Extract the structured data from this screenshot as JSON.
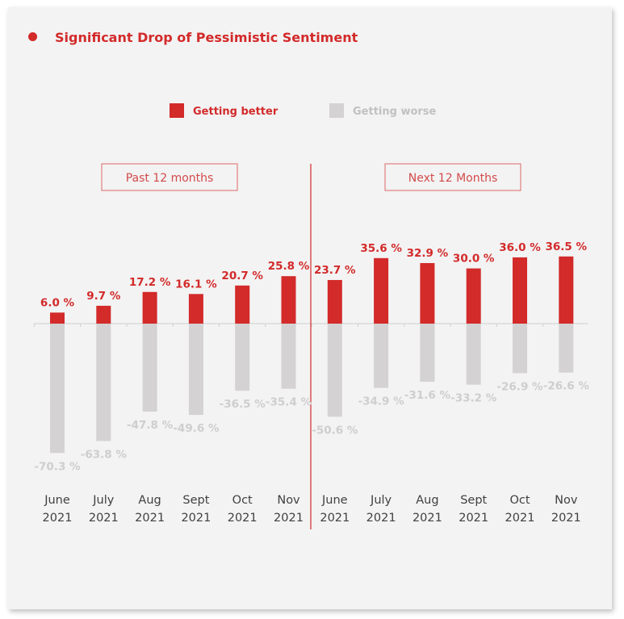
{
  "title": "Significant Drop of Pessimistic Sentiment",
  "colors": {
    "accent": "#d32a2a",
    "worse": "#d4d2d2",
    "text": "#404040",
    "card": "#f3f3f3"
  },
  "chart_data": {
    "type": "bar",
    "title": "Significant Drop of Pessimistic Sentiment",
    "legend": [
      {
        "name": "Getting better",
        "color": "#d32a2a"
      },
      {
        "name": "Getting worse",
        "color": "#d4d2d2"
      }
    ],
    "groups": [
      {
        "label": "Past 12 months",
        "range": [
          0,
          5
        ]
      },
      {
        "label": "Next 12 Months",
        "range": [
          6,
          11
        ]
      }
    ],
    "categories": [
      [
        "June",
        "2021"
      ],
      [
        "July",
        "2021"
      ],
      [
        "Aug",
        "2021"
      ],
      [
        "Sept",
        "2021"
      ],
      [
        "Oct",
        "2021"
      ],
      [
        "Nov",
        "2021"
      ],
      [
        "June",
        "2021"
      ],
      [
        "July",
        "2021"
      ],
      [
        "Aug",
        "2021"
      ],
      [
        "Sept",
        "2021"
      ],
      [
        "Oct",
        "2021"
      ],
      [
        "Nov",
        "2021"
      ]
    ],
    "series": [
      {
        "name": "Getting better",
        "values": [
          6.0,
          9.7,
          17.2,
          16.1,
          20.7,
          25.8,
          23.7,
          35.6,
          32.9,
          30.0,
          36.0,
          36.5
        ]
      },
      {
        "name": "Getting worse",
        "values": [
          -70.3,
          -63.8,
          -47.8,
          -49.6,
          -36.5,
          -35.4,
          -50.6,
          -34.9,
          -31.6,
          -33.2,
          -26.9,
          -26.6
        ]
      }
    ],
    "value_suffix": " %",
    "ylim": [
      -75,
      40
    ]
  }
}
